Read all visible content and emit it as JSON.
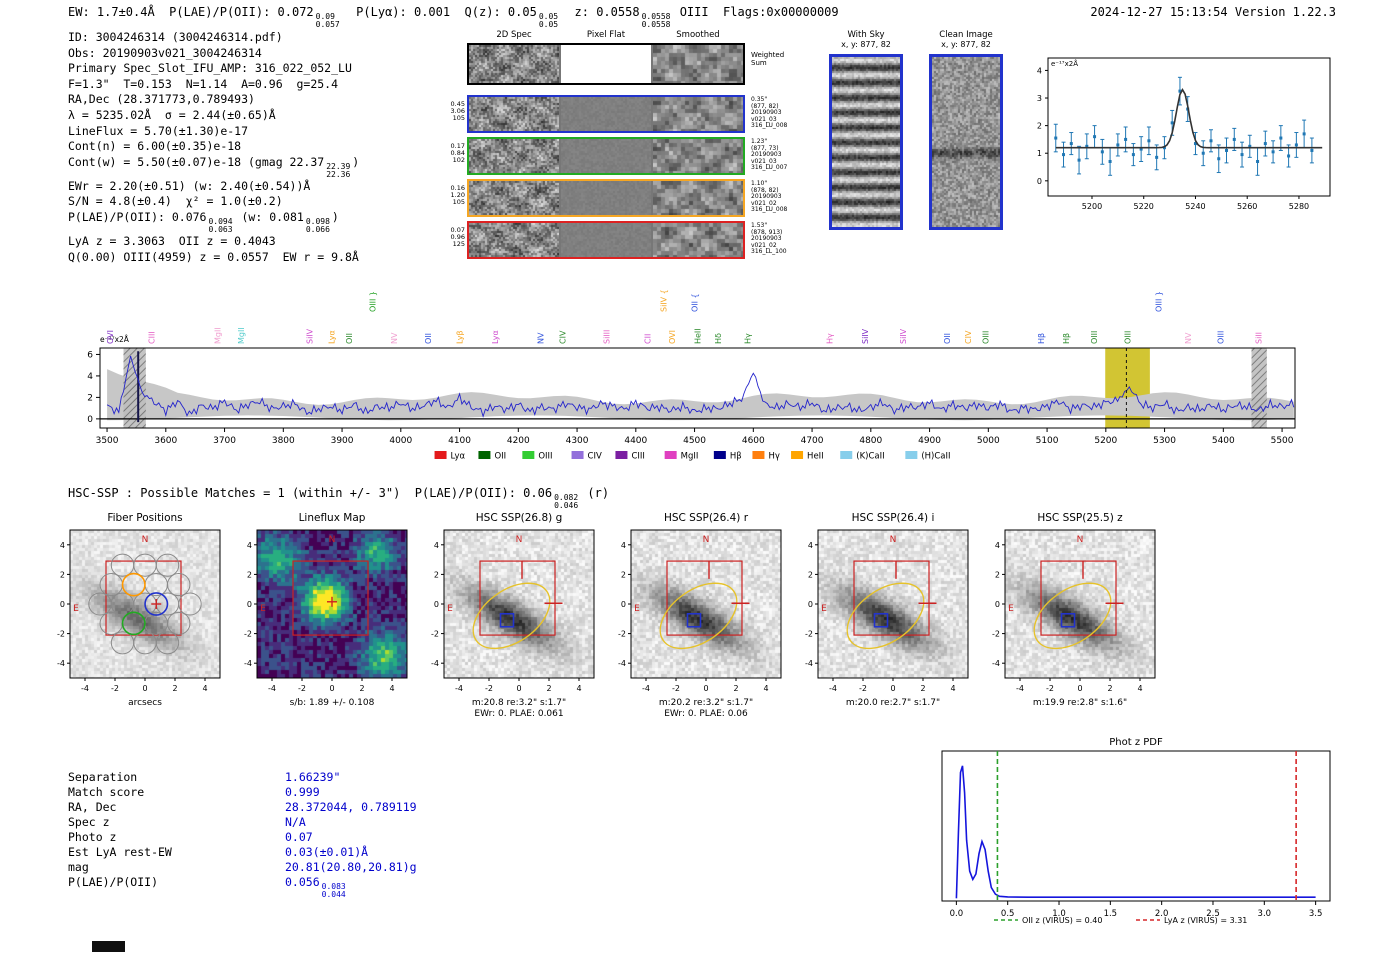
{
  "header": {
    "left_segments": [
      {
        "t": "EW: 1.7±0.4Å  P(LAE)/P(OII): 0.072"
      },
      {
        "sup": "0.09",
        "sub": "0.057"
      },
      {
        "t": "  P(Lyα): 0.001  Q(z): 0.05"
      },
      {
        "sup": "0.05",
        "sub": "0.05"
      },
      {
        "t": "  z: 0.0558"
      },
      {
        "sup": "0.0558",
        "sub": "0.0558"
      },
      {
        "t": " OIII  Flags:0x00000009"
      }
    ],
    "right": "2024-12-27 15:13:54  Version 1.22.3"
  },
  "info": {
    "lines": [
      [
        {
          "t": "ID: 3004246314 (3004246314.pdf)"
        }
      ],
      [
        {
          "t": "Obs: 20190903v021_3004246314"
        }
      ],
      [
        {
          "t": "Primary Spec_Slot_IFU_AMP: 316_022_052_LU"
        }
      ],
      [
        {
          "t": "F=1.3\"  T=0.153  N=1.14  A=0.96  g=25.4"
        }
      ],
      [
        {
          "t": "RA,Dec (28.371773,0.789493)"
        }
      ],
      [
        {
          "t": "λ = 5235.02Å  σ = 2.44(±0.65)Å"
        }
      ],
      [
        {
          "t": "LineFlux = 5.70(±1.30)e-17"
        }
      ],
      [
        {
          "t": "Cont(n) = 6.00(±0.35)e-18"
        }
      ],
      [
        {
          "t": "Cont(w) = 5.50(±0.07)e-18 (gmag 22.37"
        },
        {
          "sup": "22.39",
          "sub": "22.36"
        },
        {
          "t": ")"
        }
      ],
      [
        {
          "t": "EWr = 2.20(±0.51) (w: 2.40(±0.54))Å"
        }
      ],
      [
        {
          "t": "S/N = 4.8(±0.4)  χ² = 1.0(±0.2)"
        }
      ],
      [
        {
          "t": "P(LAE)/P(OII): 0.076"
        },
        {
          "sup": "0.094",
          "sub": "0.063"
        },
        {
          "t": " (w: 0.081"
        },
        {
          "sup": "0.098",
          "sub": "0.066"
        },
        {
          "t": ")"
        }
      ],
      [
        {
          "t": "LyA z = 3.3063  OII z = 0.4043"
        }
      ],
      [
        {
          "t": "Q(0.00) OIII(4959) z = 0.0557  EW r = 9.8Å"
        }
      ]
    ]
  },
  "spec2d": {
    "col_titles": [
      "2D Spec",
      "Pixel Flat",
      "Smoothed"
    ],
    "weighted_sum_label": [
      "Weighted",
      "Sum"
    ],
    "rows": [
      {
        "border_color": "#2233cc",
        "left_values": [
          "0.45",
          "3.06",
          "105"
        ],
        "right_lines": [
          "0.35\"",
          "(877, 82)",
          "20190903",
          "v021_03",
          "316_LU_008"
        ]
      },
      {
        "border_color": "#22aa22",
        "left_values": [
          "0.17",
          "0.84",
          "102"
        ],
        "right_lines": [
          "1.23\"",
          "(877, 73)",
          "20190903",
          "v021_03",
          "316_LU_007"
        ]
      },
      {
        "border_color": "#f5a623",
        "left_values": [
          "0.16",
          "1.20",
          "105"
        ],
        "right_lines": [
          "1.10\"",
          "(878, 82)",
          "20190903",
          "v021_02",
          "316_LU_008"
        ]
      },
      {
        "border_color": "#dd2222",
        "left_values": [
          "0.07",
          "0.96",
          "125"
        ],
        "right_lines": [
          "1.53\"",
          "(878, 913)",
          "20190903",
          "v021_02",
          "316_LL_100"
        ]
      }
    ]
  },
  "sky_panels": {
    "with_sky": {
      "title": "With Sky",
      "subtitle": "x, y: 877, 82"
    },
    "clean": {
      "title": "Clean Image",
      "subtitle": "x, y: 877, 82"
    }
  },
  "hsc_line": {
    "segments": [
      {
        "t": "HSC-SSP : Possible Matches = 1 (within +/- 3\")  P(LAE)/P(OII): 0.06"
      },
      {
        "sup": "0.082",
        "sub": "0.046"
      },
      {
        "t": " (r)"
      }
    ]
  },
  "cutouts": {
    "ticks": [
      -4,
      -2,
      0,
      2,
      4
    ],
    "compass_n": "N",
    "compass_e": "E",
    "panels": [
      {
        "title": "Fiber Positions",
        "kind": "fiber",
        "captions": [
          "arcsecs"
        ]
      },
      {
        "title": "Lineflux Map",
        "kind": "heatmap",
        "captions": [
          "s/b: 1.89 +/- 0.108"
        ]
      },
      {
        "title": "HSC SSP(26.8) g",
        "kind": "image",
        "captions": [
          "m:20.8 re:3.2\" s:1.7\"",
          "EWr: 0. PLAE: 0.061"
        ]
      },
      {
        "title": "HSC SSP(26.4) r",
        "kind": "image",
        "captions": [
          "m:20.2 re:3.2\" s:1.7\"",
          "EWr: 0. PLAE: 0.06"
        ]
      },
      {
        "title": "HSC SSP(26.4) i",
        "kind": "image",
        "captions": [
          "m:20.0 re:2.7\" s:1.7\""
        ]
      },
      {
        "title": "HSC SSP(25.5) z",
        "kind": "image",
        "captions": [
          "m:19.9 re:2.8\" s:1.6\""
        ]
      }
    ]
  },
  "match_table": {
    "rows": [
      {
        "label": "Separation",
        "value_segments": [
          {
            "t": "1.66239\""
          }
        ]
      },
      {
        "label": "Match score",
        "value_segments": [
          {
            "t": "0.999"
          }
        ]
      },
      {
        "label": "RA, Dec",
        "value_segments": [
          {
            "t": "28.372044, 0.789119"
          }
        ]
      },
      {
        "label": "Spec z",
        "value_segments": [
          {
            "t": "N/A"
          }
        ]
      },
      {
        "label": "Photo z",
        "value_segments": [
          {
            "t": "0.07"
          }
        ]
      },
      {
        "label": "Est LyA rest-EW",
        "value_segments": [
          {
            "t": "0.03(±0.01)Å"
          }
        ]
      },
      {
        "label": "mag",
        "value_segments": [
          {
            "t": "20.81(20.80,20.81)g"
          }
        ]
      },
      {
        "label": "P(LAE)/P(OII)",
        "value_segments": [
          {
            "t": "0.056"
          },
          {
            "sup": "0.083",
            "sub": "0.044"
          }
        ]
      }
    ]
  },
  "chart_data": [
    {
      "id": "line_fit",
      "type": "scatter",
      "unit_label": "e⁻¹⁷x2Å",
      "xlim": [
        5183,
        5292
      ],
      "ylim": [
        -0.55,
        4.45
      ],
      "xticks": [
        5200,
        5220,
        5240,
        5260,
        5280
      ],
      "yticks": [
        0,
        1,
        2,
        3,
        4
      ],
      "fit": {
        "center": 5235.02,
        "sigma": 2.44,
        "continuum": 1.2,
        "peak_above": 2.1
      },
      "points": [
        [
          5186,
          1.55,
          0.5
        ],
        [
          5189,
          0.95,
          0.45
        ],
        [
          5192,
          1.35,
          0.4
        ],
        [
          5195,
          0.75,
          0.5
        ],
        [
          5198,
          1.25,
          0.45
        ],
        [
          5201,
          1.6,
          0.4
        ],
        [
          5204,
          1.05,
          0.45
        ],
        [
          5207,
          0.7,
          0.5
        ],
        [
          5210,
          1.3,
          0.4
        ],
        [
          5213,
          1.5,
          0.45
        ],
        [
          5216,
          0.95,
          0.4
        ],
        [
          5219,
          1.15,
          0.45
        ],
        [
          5222,
          1.45,
          0.5
        ],
        [
          5225,
          0.85,
          0.45
        ],
        [
          5228,
          1.2,
          0.4
        ],
        [
          5231,
          2.1,
          0.45
        ],
        [
          5234,
          3.25,
          0.5
        ],
        [
          5237,
          2.6,
          0.45
        ],
        [
          5240,
          1.35,
          0.4
        ],
        [
          5243,
          1.0,
          0.45
        ],
        [
          5246,
          1.45,
          0.4
        ],
        [
          5249,
          0.8,
          0.5
        ],
        [
          5252,
          1.1,
          0.45
        ],
        [
          5255,
          1.5,
          0.4
        ],
        [
          5258,
          0.95,
          0.45
        ],
        [
          5261,
          1.25,
          0.4
        ],
        [
          5264,
          0.7,
          0.5
        ],
        [
          5267,
          1.35,
          0.45
        ],
        [
          5270,
          1.05,
          0.4
        ],
        [
          5273,
          1.55,
          0.45
        ],
        [
          5276,
          0.9,
          0.4
        ],
        [
          5279,
          1.3,
          0.45
        ],
        [
          5282,
          1.7,
          0.5
        ],
        [
          5285,
          1.1,
          0.45
        ]
      ]
    },
    {
      "id": "full_spectrum",
      "type": "line",
      "unit_label": "e⁻¹⁷x2Å",
      "xlim": [
        3488,
        5522
      ],
      "ylim": [
        -0.85,
        6.6
      ],
      "xticks": [
        3500,
        3600,
        3700,
        3800,
        3900,
        4000,
        4100,
        4200,
        4300,
        4400,
        4500,
        4600,
        4700,
        4800,
        4900,
        5000,
        5100,
        5200,
        5300,
        5400,
        5500
      ],
      "yticks": [
        0,
        2,
        4,
        6
      ],
      "x_start": 3500,
      "x_step": 20,
      "y": [
        1.1,
        0.6,
        5.8,
        2.4,
        1.7,
        0.9,
        1.8,
        0.5,
        1.3,
        1.0,
        1.6,
        0.7,
        1.2,
        1.5,
        0.8,
        1.1,
        1.4,
        0.6,
        1.0,
        1.3,
        0.9,
        1.5,
        0.7,
        1.2,
        1.0,
        1.4,
        0.8,
        1.1,
        1.6,
        0.9,
        1.9,
        1.1,
        0.7,
        1.3,
        1.0,
        1.5,
        0.8,
        1.2,
        0.9,
        1.4,
        1.0,
        0.7,
        1.3,
        1.1,
        0.8,
        1.5,
        1.0,
        1.2,
        0.9,
        1.3,
        0.8,
        1.1,
        1.0,
        1.4,
        1.8,
        4.3,
        1.2,
        0.9,
        1.3,
        1.0,
        1.5,
        0.8,
        1.1,
        1.3,
        0.9,
        1.2,
        1.6,
        0.8,
        1.1,
        1.0,
        1.4,
        0.7,
        1.2,
        0.9,
        1.3,
        1.0,
        1.5,
        0.8,
        1.2,
        1.0,
        1.3,
        1.7,
        0.9,
        1.2,
        1.0,
        1.4,
        1.6,
        2.9,
        1.3,
        1.0,
        1.5,
        0.8,
        1.2,
        1.0,
        1.4,
        0.9,
        1.3,
        1.1,
        0.7,
        1.2,
        1.0,
        1.3
      ],
      "band_half_width": 0.9,
      "highlight_band": [
        5199,
        5275
      ],
      "line_center": 5235.02,
      "masked_bands": [
        [
          3528,
          3566
        ],
        [
          5448,
          5474
        ]
      ],
      "masked_spike_x": 3553,
      "line_labels": [
        {
          "t": "OVI",
          "x": 3505,
          "c": "#7d2bc4",
          "tier": 1
        },
        {
          "t": "CIII",
          "x": 3576,
          "c": "#e45fc4",
          "tier": 1
        },
        {
          "t": "MgII",
          "x": 3688,
          "c": "#f0a0d0",
          "tier": 1
        },
        {
          "t": "MgII",
          "x": 3728,
          "c": "#55cccc",
          "tier": 1
        },
        {
          "t": "SiIV",
          "x": 3845,
          "c": "#cf4ccf",
          "tier": 1
        },
        {
          "t": "Lyα",
          "x": 3882,
          "c": "#f5a623",
          "tier": 1
        },
        {
          "t": "OII",
          "x": 3912,
          "c": "#2e8b2e",
          "tier": 1
        },
        {
          "t": "OIII }",
          "x": 3952,
          "c": "#27a327",
          "tier": 0
        },
        {
          "t": "NV",
          "x": 3988,
          "c": "#f0a0d0",
          "tier": 1
        },
        {
          "t": "OII",
          "x": 4046,
          "c": "#3355dd",
          "tier": 1
        },
        {
          "t": "Lyβ",
          "x": 4100,
          "c": "#f5a623",
          "tier": 1
        },
        {
          "t": "Lyα",
          "x": 4160,
          "c": "#cf4ccf",
          "tier": 1
        },
        {
          "t": "NV",
          "x": 4238,
          "c": "#3355dd",
          "tier": 1
        },
        {
          "t": "CIV",
          "x": 4275,
          "c": "#2e8b2e",
          "tier": 1
        },
        {
          "t": "SiIII",
          "x": 4350,
          "c": "#e45fc4",
          "tier": 1
        },
        {
          "t": "CII",
          "x": 4420,
          "c": "#cf4ccf",
          "tier": 1
        },
        {
          "t": "SiIV {",
          "x": 4447,
          "c": "#f5a623",
          "tier": 0
        },
        {
          "t": "OVI",
          "x": 4462,
          "c": "#f5a623",
          "tier": 1
        },
        {
          "t": "OII {",
          "x": 4500,
          "c": "#3355dd",
          "tier": 0
        },
        {
          "t": "HeII",
          "x": 4505,
          "c": "#2e8b2e",
          "tier": 1
        },
        {
          "t": "Hδ",
          "x": 4540,
          "c": "#2e8b2e",
          "tier": 1
        },
        {
          "t": "Hγ",
          "x": 4590,
          "c": "#2e8b2e",
          "tier": 1
        },
        {
          "t": "Hγ",
          "x": 4730,
          "c": "#e45fc4",
          "tier": 1
        },
        {
          "t": "SiIV",
          "x": 4790,
          "c": "#7d2bc4",
          "tier": 1
        },
        {
          "t": "SiIV",
          "x": 4855,
          "c": "#cf4ccf",
          "tier": 1
        },
        {
          "t": "OII",
          "x": 4930,
          "c": "#3355dd",
          "tier": 1
        },
        {
          "t": "CIV",
          "x": 4965,
          "c": "#f5a623",
          "tier": 1
        },
        {
          "t": "OIII",
          "x": 4995,
          "c": "#2e8b2e",
          "tier": 1
        },
        {
          "t": "Hβ",
          "x": 5090,
          "c": "#3355dd",
          "tier": 1
        },
        {
          "t": "Hβ",
          "x": 5132,
          "c": "#2e8b2e",
          "tier": 1
        },
        {
          "t": "OIII",
          "x": 5180,
          "c": "#2e8b2e",
          "tier": 1
        },
        {
          "t": "OIII",
          "x": 5237,
          "c": "#2e8b2e",
          "tier": 1
        },
        {
          "t": "OIII }",
          "x": 5290,
          "c": "#3355dd",
          "tier": 0
        },
        {
          "t": "NV",
          "x": 5340,
          "c": "#f0a0d0",
          "tier": 1
        },
        {
          "t": "OIII",
          "x": 5395,
          "c": "#3355dd",
          "tier": 1
        },
        {
          "t": "SiII",
          "x": 5460,
          "c": "#e45fc4",
          "tier": 1
        }
      ],
      "legend": [
        {
          "t": "Lyα",
          "c": "#e41a1c"
        },
        {
          "t": "OII",
          "c": "#006400"
        },
        {
          "t": "OIII",
          "c": "#32cd32"
        },
        {
          "t": "CIV",
          "c": "#9370db"
        },
        {
          "t": "CIII",
          "c": "#7b1fa2"
        },
        {
          "t": "MgII",
          "c": "#e040c0"
        },
        {
          "t": "Hβ",
          "c": "#00008b"
        },
        {
          "t": "Hγ",
          "c": "#ff7f0e"
        },
        {
          "t": "HeII",
          "c": "#ffa500"
        },
        {
          "t": "(K)CaII",
          "c": "#87ceeb"
        },
        {
          "t": "(H)CaII",
          "c": "#87ceeb"
        }
      ]
    },
    {
      "id": "phot_z_pdf",
      "type": "line",
      "title": "Phot z PDF",
      "xlim": [
        -0.14,
        3.64
      ],
      "xticks": [
        0.0,
        0.5,
        1.0,
        1.5,
        2.0,
        2.5,
        3.0,
        3.5
      ],
      "points": [
        [
          0.0,
          0.02
        ],
        [
          0.02,
          0.5
        ],
        [
          0.04,
          0.95
        ],
        [
          0.06,
          1.0
        ],
        [
          0.08,
          0.8
        ],
        [
          0.1,
          0.45
        ],
        [
          0.13,
          0.22
        ],
        [
          0.16,
          0.16
        ],
        [
          0.19,
          0.2
        ],
        [
          0.22,
          0.35
        ],
        [
          0.25,
          0.44
        ],
        [
          0.28,
          0.38
        ],
        [
          0.31,
          0.22
        ],
        [
          0.34,
          0.1
        ],
        [
          0.38,
          0.05
        ],
        [
          0.42,
          0.035
        ],
        [
          0.5,
          0.03
        ],
        [
          0.7,
          0.028
        ],
        [
          1.0,
          0.028
        ],
        [
          1.5,
          0.028
        ],
        [
          2.0,
          0.028
        ],
        [
          2.5,
          0.028
        ],
        [
          3.0,
          0.028
        ],
        [
          3.31,
          0.028
        ],
        [
          3.5,
          0.028
        ]
      ],
      "vlines": [
        {
          "x": 0.4,
          "color": "#2ca02c",
          "label": "OII z (VIRUS) = 0.40"
        },
        {
          "x": 3.31,
          "color": "#d62728",
          "label": "LyA z (VIRUS) = 3.31"
        }
      ]
    }
  ]
}
